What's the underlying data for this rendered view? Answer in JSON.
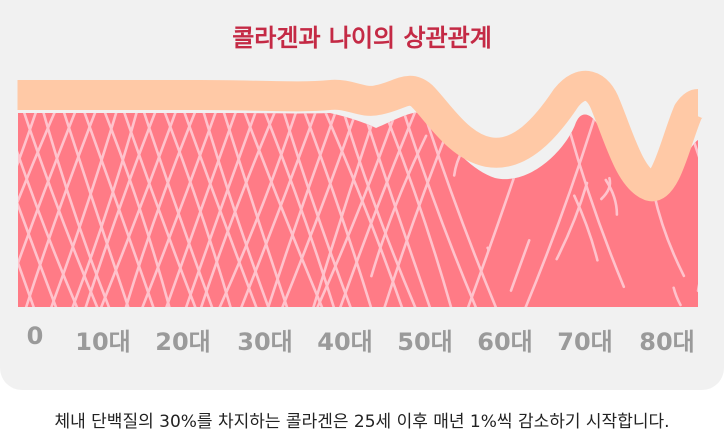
{
  "title": "콜라겐과 나이의 상관관계",
  "age_labels": [
    "0",
    "10대",
    "20대",
    "30대",
    "40대",
    "50대",
    "60대",
    "70대",
    "80대"
  ],
  "caption": "체내 단백질의 30%를 차지하는 콜라겐은 25세 이후 매년 1%씩 감소하기 시작합니다.",
  "colors": {
    "title": "#c42a45",
    "tissue": "#ff7b86",
    "fiber": "#ffc3cc",
    "skin_surface": "#ffc9a6",
    "label": "#9a9a9a",
    "card": "#f1f1f1"
  }
}
